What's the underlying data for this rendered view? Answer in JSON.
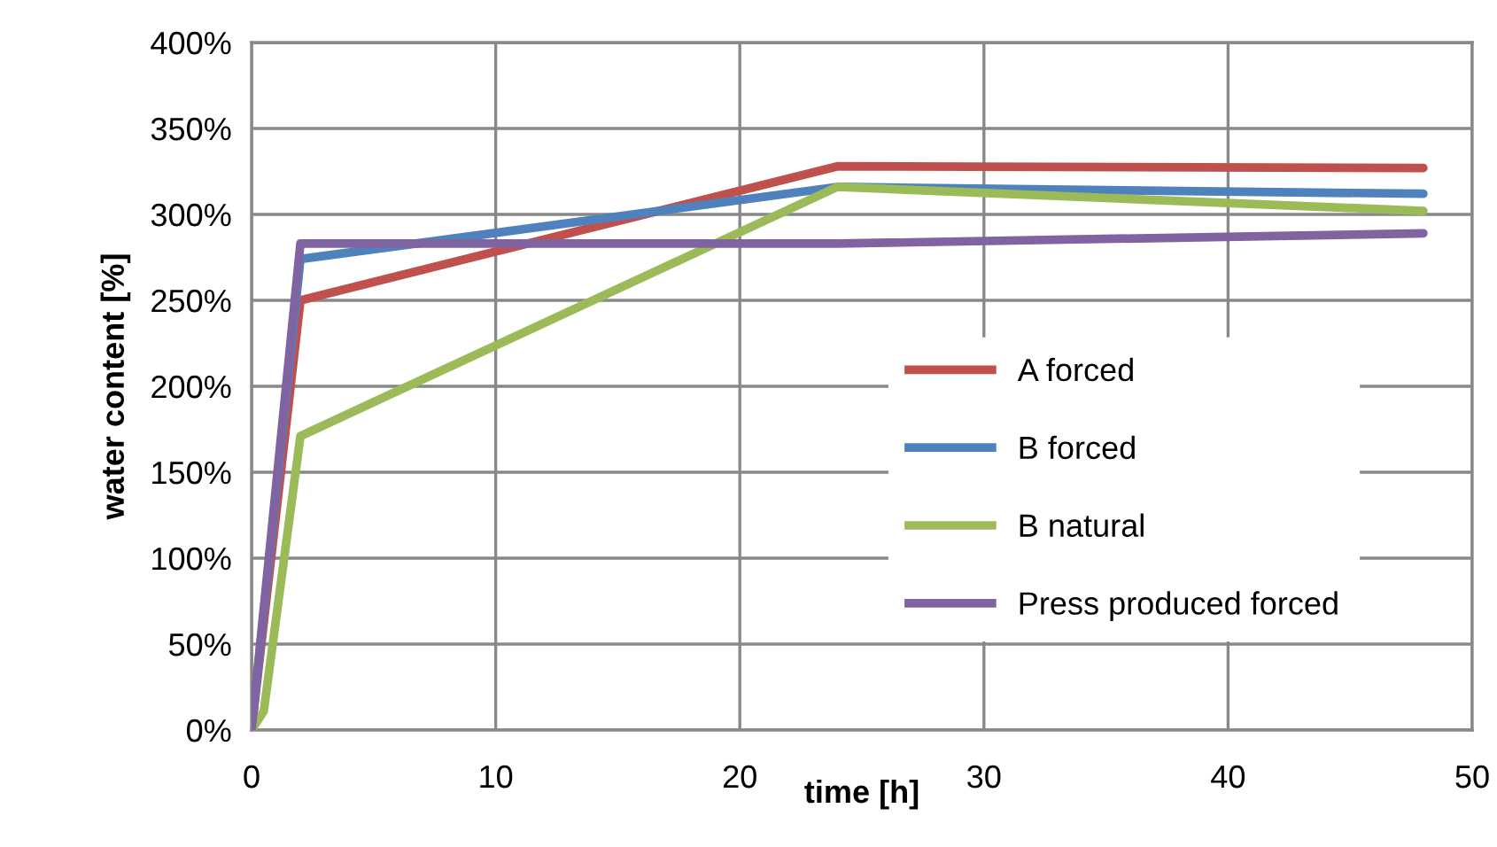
{
  "chart_data": {
    "type": "line",
    "xlabel": "time [h]",
    "ylabel": "water content [%]",
    "xlim": [
      0,
      50
    ],
    "xticks": [
      0,
      10,
      20,
      30,
      40,
      50
    ],
    "ylim": [
      0,
      400
    ],
    "yticks": [
      {
        "value": 0,
        "label": "0%"
      },
      {
        "value": 50,
        "label": "50%"
      },
      {
        "value": 100,
        "label": "100%"
      },
      {
        "value": 150,
        "label": "150%"
      },
      {
        "value": 200,
        "label": "200%"
      },
      {
        "value": 250,
        "label": "250%"
      },
      {
        "value": 300,
        "label": "300%"
      },
      {
        "value": 350,
        "label": "350%"
      },
      {
        "value": 400,
        "label": "400%"
      }
    ],
    "grid": true,
    "legend": "right",
    "marker": "none",
    "line_style": "solid",
    "series": [
      {
        "name": "A forced",
        "color": "#c0504d",
        "x": [
          0,
          2,
          24,
          48
        ],
        "values": [
          0,
          250,
          328,
          327
        ]
      },
      {
        "name": "B forced",
        "color": "#4f81bd",
        "x": [
          0,
          2,
          24,
          48
        ],
        "values": [
          0,
          274,
          316,
          312
        ]
      },
      {
        "name": "B natural",
        "color": "#9bbb59",
        "x": [
          0,
          0.5,
          2,
          24,
          48
        ],
        "values": [
          0,
          11,
          171,
          316,
          302
        ]
      },
      {
        "name": "Press produced forced",
        "color": "#8064a2",
        "x": [
          0,
          2,
          24,
          48
        ],
        "values": [
          0,
          283,
          283,
          289
        ]
      }
    ]
  }
}
